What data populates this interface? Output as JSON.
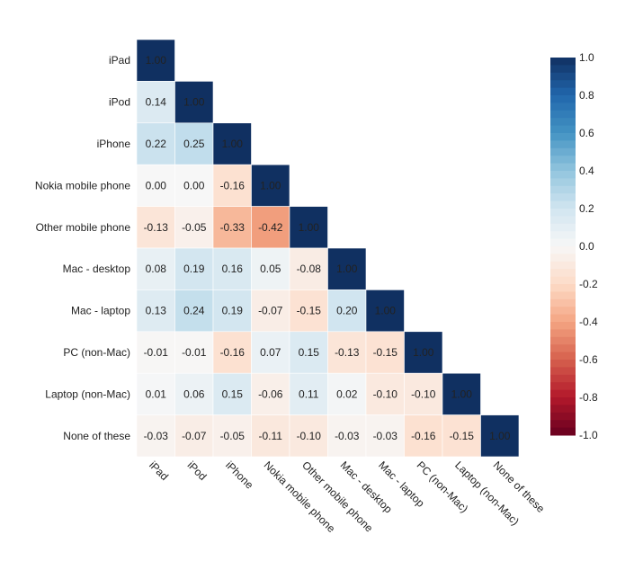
{
  "chart_data": {
    "type": "heatmap",
    "title": "",
    "variant": "lower-triangle correlation matrix",
    "labels": [
      "iPad",
      "iPod",
      "iPhone",
      "Nokia mobile phone",
      "Other mobile phone",
      "Mac - desktop",
      "Mac - laptop",
      "PC (non-Mac)",
      "Laptop (non-Mac)",
      "None of these"
    ],
    "matrix": [
      [
        1.0
      ],
      [
        0.14,
        1.0
      ],
      [
        0.22,
        0.25,
        1.0
      ],
      [
        0.0,
        0.0,
        -0.16,
        1.0
      ],
      [
        -0.13,
        -0.05,
        -0.33,
        -0.42,
        1.0
      ],
      [
        0.08,
        0.19,
        0.16,
        0.05,
        -0.08,
        1.0
      ],
      [
        0.13,
        0.24,
        0.19,
        -0.07,
        -0.15,
        0.2,
        1.0
      ],
      [
        -0.01,
        -0.01,
        -0.16,
        0.07,
        0.15,
        -0.13,
        -0.15,
        1.0
      ],
      [
        0.01,
        0.06,
        0.15,
        -0.06,
        0.11,
        0.02,
        -0.1,
        -0.1,
        1.0
      ],
      [
        -0.03,
        -0.07,
        -0.05,
        -0.11,
        -0.1,
        -0.03,
        -0.03,
        -0.16,
        -0.15,
        1.0
      ]
    ],
    "value_format": "2 decimals",
    "colorscale": "RdBu",
    "zlim": [
      -1.0,
      1.0
    ],
    "colorbar": {
      "placement": "right",
      "ticks": [
        1.0,
        0.8,
        0.6,
        0.4,
        0.2,
        0.0,
        -0.2,
        -0.4,
        -0.6,
        -0.8,
        -1.0
      ],
      "tick_labels": [
        "1.0",
        "0.8",
        "0.6",
        "0.4",
        "0.2",
        "0.0",
        "-0.2",
        "-0.4",
        "-0.6",
        "-0.8",
        "-1.0"
      ]
    },
    "xlabel": "",
    "ylabel": "",
    "grid": false
  }
}
